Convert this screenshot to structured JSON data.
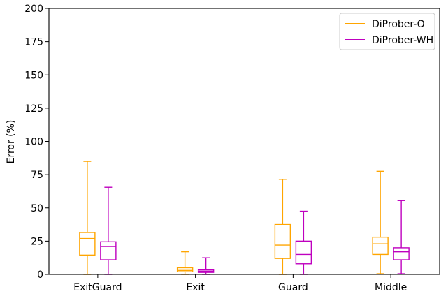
{
  "chart_data": {
    "type": "box",
    "title": "",
    "xlabel": "",
    "ylabel": "Error (%)",
    "ylim": [
      0,
      200
    ],
    "yticks": [
      0,
      25,
      50,
      75,
      100,
      125,
      150,
      175,
      200
    ],
    "categories": [
      "ExitGuard",
      "Exit",
      "Guard",
      "Middle"
    ],
    "grid": false,
    "legend_position": "top-right",
    "series": [
      {
        "name": "DiProber-O",
        "color": "#ffa500",
        "boxes": [
          {
            "min": 0,
            "q1": 14.5,
            "median": 27,
            "q3": 31.5,
            "max": 85
          },
          {
            "min": 0,
            "q1": 2,
            "median": 3,
            "q3": 5,
            "max": 17
          },
          {
            "min": 0,
            "q1": 12,
            "median": 22,
            "q3": 37.5,
            "max": 71.5
          },
          {
            "min": 0.5,
            "q1": 15,
            "median": 23,
            "q3": 28,
            "max": 77.5
          }
        ]
      },
      {
        "name": "DiProber-WH",
        "color": "#bf00bf",
        "boxes": [
          {
            "min": 0,
            "q1": 11,
            "median": 21,
            "q3": 24.5,
            "max": 65.5
          },
          {
            "min": 0,
            "q1": 1.5,
            "median": 2.5,
            "q3": 3.5,
            "max": 12.5
          },
          {
            "min": 0,
            "q1": 8,
            "median": 15,
            "q3": 25,
            "max": 47.5
          },
          {
            "min": 0.5,
            "q1": 11,
            "median": 17,
            "q3": 20,
            "max": 55.5
          }
        ]
      }
    ]
  }
}
